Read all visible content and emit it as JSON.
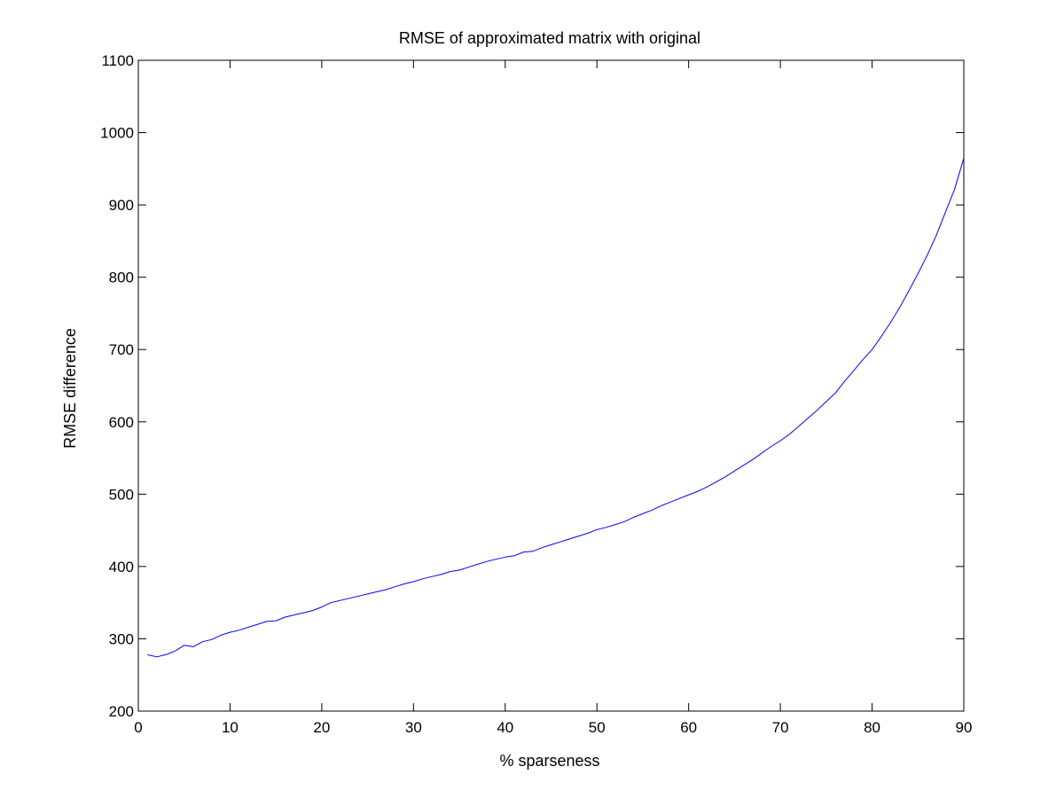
{
  "chart_data": {
    "type": "line",
    "title": "RMSE of approximated matrix with original",
    "xlabel": "% sparseness",
    "ylabel": "RMSE difference",
    "xlim": [
      0,
      90
    ],
    "ylim": [
      200,
      1100
    ],
    "xticks": [
      0,
      10,
      20,
      30,
      40,
      50,
      60,
      70,
      80,
      90
    ],
    "yticks": [
      200,
      300,
      400,
      500,
      600,
      700,
      800,
      900,
      1000,
      1100
    ],
    "grid": false,
    "legend": "none",
    "series": [
      {
        "color": "#0000ff",
        "x": [
          1,
          2,
          3,
          4,
          5,
          6,
          7,
          8,
          9,
          10,
          11,
          12,
          13,
          14,
          15,
          16,
          17,
          18,
          19,
          20,
          21,
          22,
          23,
          24,
          25,
          26,
          27,
          28,
          29,
          30,
          31,
          32,
          33,
          34,
          35,
          36,
          37,
          38,
          39,
          40,
          41,
          42,
          43,
          44,
          45,
          46,
          47,
          48,
          49,
          50,
          51,
          52,
          53,
          54,
          55,
          56,
          57,
          58,
          59,
          60,
          61,
          62,
          63,
          64,
          65,
          66,
          67,
          68,
          69,
          70,
          71,
          72,
          73,
          74,
          75,
          76,
          77,
          78,
          79,
          80,
          81,
          82,
          83,
          84,
          85,
          86,
          87,
          88,
          89,
          90
        ],
        "y": [
          278,
          275,
          278,
          283,
          291,
          289,
          296,
          299,
          305,
          309,
          312,
          316,
          320,
          324,
          325,
          330,
          333,
          336,
          339,
          344,
          350,
          353,
          356,
          359,
          362,
          365,
          368,
          372,
          376,
          379,
          383,
          386,
          389,
          393,
          395,
          399,
          403,
          407,
          410,
          413,
          415,
          420,
          421,
          426,
          430,
          434,
          438,
          442,
          446,
          451,
          454,
          458,
          462,
          468,
          473,
          478,
          484,
          489,
          494,
          499,
          504,
          510,
          517,
          524,
          532,
          540,
          548,
          557,
          566,
          574,
          583,
          594,
          605,
          616,
          628,
          640,
          656,
          671,
          686,
          700,
          718,
          737,
          758,
          781,
          805,
          830,
          858,
          890,
          922,
          965
        ]
      }
    ]
  }
}
